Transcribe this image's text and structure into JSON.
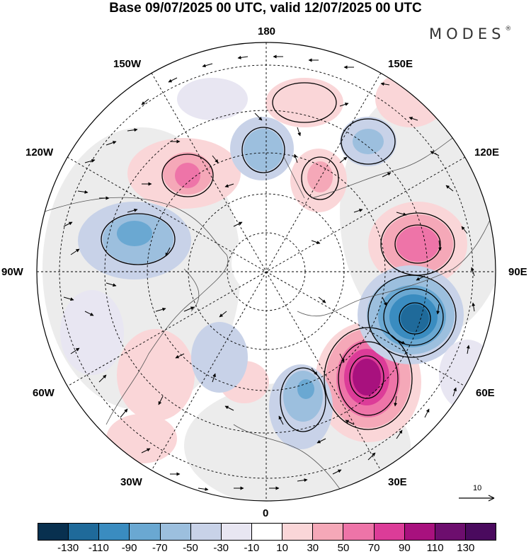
{
  "header": {
    "title": "Base 09/07/2025 00 UTC, valid 12/07/2025 00 UTC",
    "brand": "MODES",
    "brand_mark": "®"
  },
  "map": {
    "projection": "polar stereographic (north pole)",
    "longitude_labels": {
      "top": "180",
      "top_right": "150E",
      "top_left": "150W",
      "upper_right": "120E",
      "upper_left": "120W",
      "right": "90E",
      "left": "90W",
      "lower_right": "60E",
      "lower_left": "60W",
      "bottom_right": "30E",
      "bottom_left": "30W",
      "bottom": "0"
    },
    "reference_vector": {
      "label": "10"
    }
  },
  "colorbar": {
    "labels": [
      "-130",
      "-110",
      "-90",
      "-70",
      "-50",
      "-30",
      "-10",
      "10",
      "30",
      "50",
      "70",
      "90",
      "110",
      "130"
    ],
    "colors": [
      "#08304f",
      "#1f6a9a",
      "#3a8cc0",
      "#6aa8d2",
      "#9cbfde",
      "#c8d2e8",
      "#e8e6f2",
      "#ffffff",
      "#fad6d8",
      "#f5a8b8",
      "#ee74a8",
      "#dc3c98",
      "#a8117e",
      "#6d0e6e",
      "#4a0a5e"
    ]
  }
}
